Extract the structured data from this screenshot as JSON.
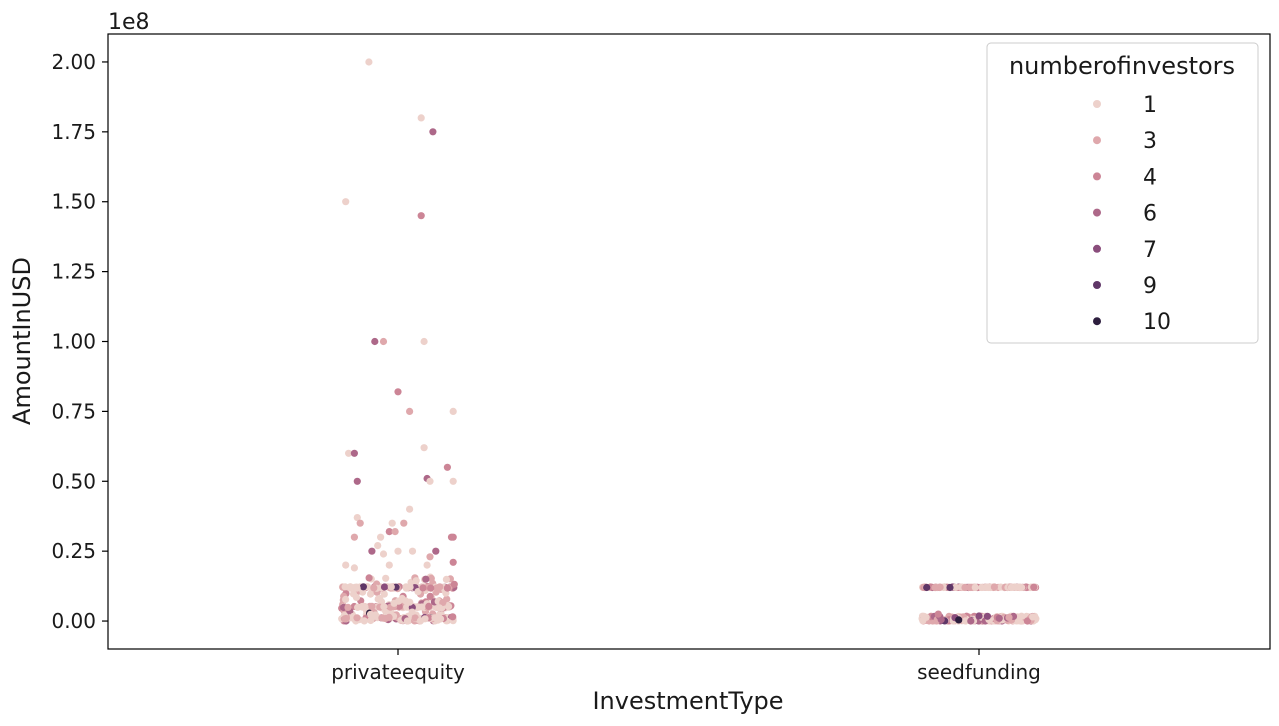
{
  "chart_data": {
    "type": "scatter",
    "subtype": "strip",
    "xlabel": "InvestmentType",
    "ylabel": "AmountInUSD",
    "y_offset_text": "1e8",
    "y_scale": 100000000,
    "ylim": [
      -10000000,
      210000000
    ],
    "y_ticks": [
      0,
      25000000,
      50000000,
      75000000,
      100000000,
      125000000,
      150000000,
      175000000,
      200000000
    ],
    "y_tick_labels": [
      "0.00",
      "0.25",
      "0.50",
      "0.75",
      "1.00",
      "1.25",
      "1.50",
      "1.75",
      "2.00"
    ],
    "categories": [
      "privateequity",
      "seedfunding"
    ],
    "legend": {
      "title": "numberofinvestors",
      "placement": "top-right",
      "entries": [
        {
          "label": "1",
          "color": "#edd1cb"
        },
        {
          "label": "3",
          "color": "#dfa8ac"
        },
        {
          "label": "4",
          "color": "#cc8596"
        },
        {
          "label": "6",
          "color": "#ad6889"
        },
        {
          "label": "7",
          "color": "#8a4d7c"
        },
        {
          "label": "9",
          "color": "#5f3667"
        },
        {
          "label": "10",
          "color": "#2d1e3e"
        }
      ]
    },
    "highlighted_points": [
      {
        "category": "privateequity",
        "jitter": -0.05,
        "y": 200000000,
        "investors": "1"
      },
      {
        "category": "privateequity",
        "jitter": 0.04,
        "y": 180000000,
        "investors": "1"
      },
      {
        "category": "privateequity",
        "jitter": 0.06,
        "y": 175000000,
        "investors": "6"
      },
      {
        "category": "privateequity",
        "jitter": -0.09,
        "y": 150000000,
        "investors": "1"
      },
      {
        "category": "privateequity",
        "jitter": 0.04,
        "y": 145000000,
        "investors": "4"
      },
      {
        "category": "privateequity",
        "jitter": -0.04,
        "y": 100000000,
        "investors": "6"
      },
      {
        "category": "privateequity",
        "jitter": -0.025,
        "y": 100000000,
        "investors": "3"
      },
      {
        "category": "privateequity",
        "jitter": 0.045,
        "y": 100000000,
        "investors": "1"
      },
      {
        "category": "privateequity",
        "jitter": 0.0,
        "y": 82000000,
        "investors": "4"
      },
      {
        "category": "privateequity",
        "jitter": 0.02,
        "y": 75000000,
        "investors": "3"
      },
      {
        "category": "privateequity",
        "jitter": 0.095,
        "y": 75000000,
        "investors": "1"
      },
      {
        "category": "privateequity",
        "jitter": 0.045,
        "y": 62000000,
        "investors": "1"
      },
      {
        "category": "privateequity",
        "jitter": -0.085,
        "y": 60000000,
        "investors": "1"
      },
      {
        "category": "privateequity",
        "jitter": -0.075,
        "y": 60000000,
        "investors": "6"
      },
      {
        "category": "privateequity",
        "jitter": 0.085,
        "y": 55000000,
        "investors": "4"
      },
      {
        "category": "privateequity",
        "jitter": 0.05,
        "y": 51000000,
        "investors": "6"
      },
      {
        "category": "privateequity",
        "jitter": 0.055,
        "y": 50000000,
        "investors": "1"
      },
      {
        "category": "privateequity",
        "jitter": -0.07,
        "y": 50000000,
        "investors": "6"
      },
      {
        "category": "privateequity",
        "jitter": 0.095,
        "y": 50000000,
        "investors": "1"
      },
      {
        "category": "privateequity",
        "jitter": 0.02,
        "y": 40000000,
        "investors": "1"
      },
      {
        "category": "privateequity",
        "jitter": -0.07,
        "y": 37000000,
        "investors": "1"
      },
      {
        "category": "privateequity",
        "jitter": -0.065,
        "y": 35000000,
        "investors": "3"
      },
      {
        "category": "privateequity",
        "jitter": -0.01,
        "y": 35000000,
        "investors": "1"
      },
      {
        "category": "privateequity",
        "jitter": 0.01,
        "y": 35000000,
        "investors": "3"
      },
      {
        "category": "privateequity",
        "jitter": -0.015,
        "y": 32000000,
        "investors": "4"
      },
      {
        "category": "privateequity",
        "jitter": -0.005,
        "y": 32000000,
        "investors": "3"
      },
      {
        "category": "privateequity",
        "jitter": -0.075,
        "y": 30000000,
        "investors": "3"
      },
      {
        "category": "privateequity",
        "jitter": -0.03,
        "y": 30000000,
        "investors": "1"
      },
      {
        "category": "privateequity",
        "jitter": 0.095,
        "y": 30000000,
        "investors": "4"
      },
      {
        "category": "privateequity",
        "jitter": 0.092,
        "y": 30000000,
        "investors": "4"
      },
      {
        "category": "privateequity",
        "jitter": -0.035,
        "y": 27000000,
        "investors": "1"
      },
      {
        "category": "privateequity",
        "jitter": -0.045,
        "y": 25000000,
        "investors": "6"
      },
      {
        "category": "privateequity",
        "jitter": 0.0,
        "y": 25000000,
        "investors": "1"
      },
      {
        "category": "privateequity",
        "jitter": 0.025,
        "y": 25000000,
        "investors": "1"
      },
      {
        "category": "privateequity",
        "jitter": -0.025,
        "y": 24000000,
        "investors": "1"
      },
      {
        "category": "privateequity",
        "jitter": 0.065,
        "y": 25000000,
        "investors": "6"
      },
      {
        "category": "privateequity",
        "jitter": 0.055,
        "y": 23000000,
        "investors": "3"
      },
      {
        "category": "privateequity",
        "jitter": 0.095,
        "y": 21000000,
        "investors": "4"
      },
      {
        "category": "privateequity",
        "jitter": -0.09,
        "y": 20000000,
        "investors": "1"
      },
      {
        "category": "privateequity",
        "jitter": 0.05,
        "y": 20000000,
        "investors": "1"
      },
      {
        "category": "privateequity",
        "jitter": -0.015,
        "y": 20000000,
        "investors": "1"
      },
      {
        "category": "privateequity",
        "jitter": -0.075,
        "y": 19000000,
        "investors": "1"
      },
      {
        "category": "seedfunding",
        "jitter": -0.09,
        "y": 12000000,
        "investors": "9"
      },
      {
        "category": "seedfunding",
        "jitter": -0.05,
        "y": 12000000,
        "investors": "9"
      },
      {
        "category": "seedfunding",
        "jitter": -0.035,
        "y": 400000,
        "investors": "10"
      },
      {
        "category": "seedfunding",
        "jitter": -0.065,
        "y": 500000,
        "investors": "6"
      },
      {
        "category": "seedfunding",
        "jitter": -0.07,
        "y": 2500000,
        "investors": "4"
      },
      {
        "category": "seedfunding",
        "jitter": 0.0,
        "y": 1800000,
        "investors": "7"
      },
      {
        "category": "seedfunding",
        "jitter": 0.035,
        "y": 1000000,
        "investors": "6"
      }
    ],
    "dense_bands": [
      {
        "category": "privateequity",
        "y_min": 0,
        "y_max": 16000000,
        "count": 360,
        "band_values": [
          12000000,
          5000000,
          1000000
        ]
      },
      {
        "category": "seedfunding",
        "y_min": 12000000,
        "y_max": 12200000,
        "count": 140
      },
      {
        "category": "seedfunding",
        "y_min": 0,
        "y_max": 1800000,
        "count": 230
      }
    ]
  }
}
